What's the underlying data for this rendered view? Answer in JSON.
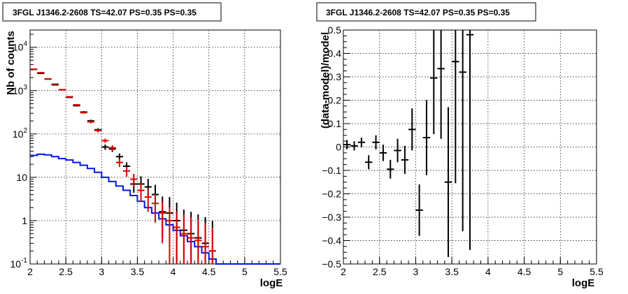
{
  "chart_data": [
    {
      "type": "step",
      "title": "3FGL J1346.2-2608 TS=42.07 PS=0.35 PS=0.35",
      "xlabel": "logE",
      "ylabel": "Nb of counts",
      "xlim": [
        2,
        5.5
      ],
      "ylim": [
        0.1,
        25000
      ],
      "yscale": "log",
      "grid": true,
      "xticks": [
        "2",
        "2.5",
        "3",
        "3.5",
        "4",
        "4.5",
        "5",
        "5.5"
      ],
      "yticks": [
        {
          "value": 0.1,
          "label": "10-1",
          "base": "10",
          "exp": "-1"
        },
        {
          "value": 1,
          "label": "1",
          "base": "1",
          "exp": ""
        },
        {
          "value": 10,
          "label": "10",
          "base": "10",
          "exp": ""
        },
        {
          "value": 100,
          "label": "102",
          "base": "10",
          "exp": "2"
        },
        {
          "value": 1000,
          "label": "103",
          "base": "10",
          "exp": "3"
        },
        {
          "value": 10000,
          "label": "104",
          "base": "10",
          "exp": "4"
        }
      ],
      "bin_width": 0.1,
      "data_points": {
        "color": "#000000",
        "x": [
          2.05,
          2.15,
          2.25,
          2.35,
          2.45,
          2.55,
          2.65,
          2.75,
          2.85,
          2.95,
          3.05,
          3.15,
          3.25,
          3.35,
          3.45,
          3.55,
          3.65,
          3.75,
          3.85,
          3.95,
          4.05,
          4.15,
          4.25,
          4.35,
          4.45,
          4.55
        ],
        "y": [
          3100,
          2500,
          1850,
          1400,
          1050,
          700,
          450,
          320,
          200,
          125,
          50,
          45,
          30,
          18,
          7,
          7,
          6,
          4,
          1.6,
          1.5,
          1,
          0.6,
          0.5,
          0.4,
          0.3,
          0.2
        ],
        "err_low": [
          55,
          50,
          43,
          37,
          32,
          26,
          21,
          18,
          14,
          11,
          7,
          6.5,
          5.5,
          4,
          2.6,
          2.6,
          2.4,
          2,
          1.2,
          1.2,
          0.9,
          0.55,
          0.45,
          0.35,
          0.25,
          0.18
        ],
        "err_high": [
          55,
          50,
          43,
          37,
          32,
          26,
          21,
          18,
          14,
          11,
          7,
          6.5,
          5.5,
          4.2,
          3.5,
          3.5,
          3.2,
          2.7,
          2,
          2,
          1.6,
          1.2,
          1.1,
          1,
          0.9,
          0.8
        ]
      },
      "model_total": {
        "color": "#e00000",
        "x": [
          2.05,
          2.15,
          2.25,
          2.35,
          2.45,
          2.55,
          2.65,
          2.75,
          2.85,
          2.95,
          3.05,
          3.15,
          3.25,
          3.35,
          3.45,
          3.55,
          3.65,
          3.75,
          3.85,
          3.95,
          4.05,
          4.15,
          4.25,
          4.35,
          4.45,
          4.55
        ],
        "y": [
          3100,
          2600,
          1850,
          1350,
          1050,
          720,
          470,
          310,
          190,
          120,
          70,
          48,
          22,
          14,
          9,
          5,
          3.5,
          2.5,
          1.5,
          1.0,
          0.7,
          0.5,
          0.4,
          0.35,
          0.25,
          0.2
        ],
        "err_low": [
          55,
          50,
          43,
          37,
          32,
          26,
          21,
          18,
          14,
          11,
          8,
          7,
          4.7,
          3.7,
          3,
          2.2,
          1.9,
          1.6,
          1.2,
          1.0,
          0.6,
          0.45,
          0.3,
          0.25,
          0.15,
          0.1
        ],
        "err_high": [
          55,
          50,
          43,
          37,
          32,
          26,
          21,
          18,
          14,
          11,
          8,
          7,
          4.7,
          3.7,
          3,
          2.2,
          1.9,
          1.6,
          1.2,
          1.0,
          0.9,
          0.9,
          0.8,
          0.7,
          0.6,
          0.5
        ]
      },
      "model_source": {
        "color": "#0018e8",
        "edges": [
          2.0,
          2.1,
          2.2,
          2.3,
          2.4,
          2.5,
          2.6,
          2.7,
          2.8,
          2.9,
          3.0,
          3.1,
          3.2,
          3.3,
          3.4,
          3.5,
          3.6,
          3.7,
          3.8,
          3.9,
          4.0,
          4.1,
          4.2,
          4.3,
          4.4,
          4.5,
          4.6,
          4.7,
          4.8,
          4.9,
          5.0,
          5.1,
          5.2,
          5.3,
          5.4,
          5.5
        ],
        "values": [
          32,
          34,
          33,
          30,
          27,
          25,
          22,
          19,
          16,
          13,
          10,
          8,
          6.3,
          5,
          3.8,
          2.8,
          2.0,
          1.5,
          1.1,
          0.8,
          0.6,
          0.45,
          0.33,
          0.25,
          0.18,
          0.13,
          0.1,
          0.1,
          0.1,
          0.1,
          0.1,
          0.1,
          0.1,
          0.1,
          0.1
        ]
      }
    },
    {
      "type": "scatter",
      "title": "3FGL J1346.2-2608 TS=42.07 PS=0.35 PS=0.35",
      "xlabel": "logE",
      "ylabel": "(data-model)/model",
      "xlim": [
        2,
        5.5
      ],
      "ylim": [
        -0.5,
        0.5
      ],
      "grid": true,
      "xticks": [
        "2",
        "2.5",
        "3",
        "3.5",
        "4",
        "4.5",
        "5",
        "5.5"
      ],
      "yticks": [
        "-0.5",
        "-0.4",
        "-0.3",
        "-0.2",
        "-0.1",
        "0",
        "0.1",
        "0.2",
        "0.3",
        "0.4",
        "0.5"
      ],
      "bin_width": 0.1,
      "series": [
        {
          "color": "#000000",
          "x": [
            2.05,
            2.15,
            2.25,
            2.35,
            2.45,
            2.55,
            2.65,
            2.75,
            2.85,
            2.95,
            3.05,
            3.15,
            3.25,
            3.35,
            3.45,
            3.55,
            3.65,
            3.75
          ],
          "y": [
            0.01,
            0.005,
            0.02,
            -0.065,
            0.02,
            -0.025,
            -0.095,
            -0.015,
            -0.055,
            0.075,
            -0.27,
            0.04,
            0.295,
            0.335,
            -0.15,
            0.365,
            0.32,
            0.48
          ],
          "err": [
            0.02,
            0.02,
            0.02,
            0.03,
            0.03,
            0.035,
            0.04,
            0.05,
            0.06,
            0.09,
            0.11,
            0.16,
            0.24,
            0.3,
            0.32,
            0.52,
            0.68,
            0.92
          ]
        }
      ]
    }
  ]
}
